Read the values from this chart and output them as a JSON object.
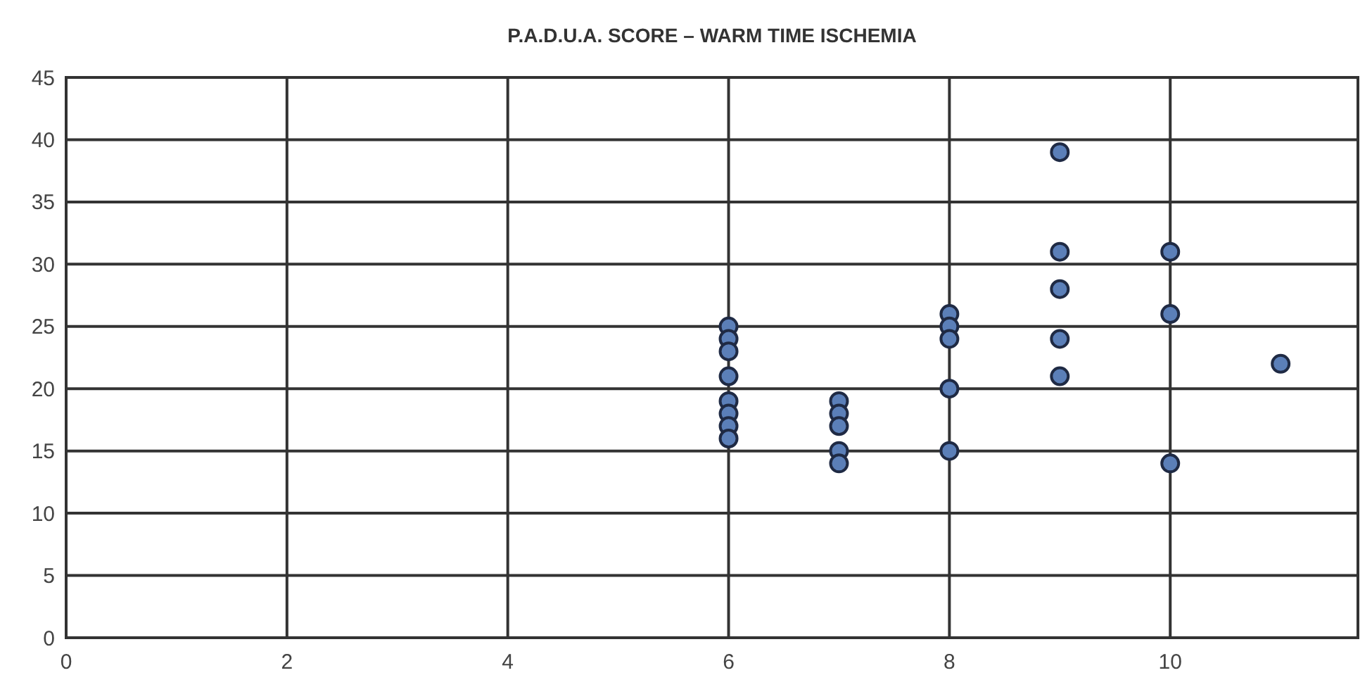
{
  "chart_data": {
    "type": "scatter",
    "title": "P.A.D.U.A. SCORE – WARM TIME ISCHEMIA",
    "x": [
      6,
      6,
      6,
      6,
      6,
      6,
      6,
      6,
      7,
      7,
      7,
      7,
      7,
      8,
      8,
      8,
      8,
      8,
      9,
      9,
      9,
      9,
      9,
      10,
      10,
      10,
      11
    ],
    "values": [
      25,
      24,
      23,
      21,
      19,
      18,
      17,
      16,
      19,
      18,
      17,
      15,
      14,
      26,
      25,
      24,
      20,
      15,
      39,
      31,
      28,
      24,
      21,
      31,
      26,
      14,
      22
    ],
    "color": "#5b7fb8",
    "marker": "circle",
    "xlim": [
      0,
      11.7
    ],
    "xticks": [
      0,
      2,
      4,
      6,
      8,
      10
    ],
    "ylim": [
      0,
      45
    ],
    "yticks": [
      0,
      5,
      10,
      15,
      20,
      25,
      30,
      35,
      40,
      45
    ],
    "grid": true
  }
}
